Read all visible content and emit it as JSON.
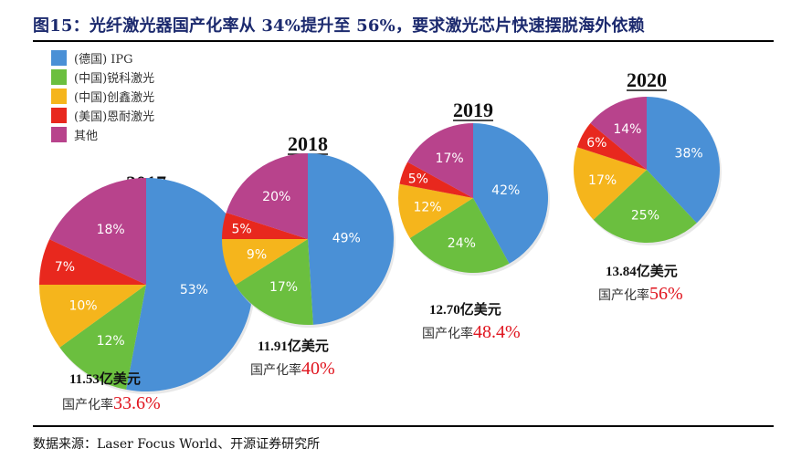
{
  "title": "图15：光纤激光器国产化率从 34%提升至 56%，要求激光芯片快速摆脱海外依赖",
  "source": "数据来源：Laser Focus World、开源证券研究所",
  "legend": [
    {
      "label": "(德国) IPG",
      "color": "#4a90d6"
    },
    {
      "label": "(中国)锐科激光",
      "color": "#6bbf3f"
    },
    {
      "label": "(中国)创鑫激光",
      "color": "#f5b51c"
    },
    {
      "label": "(美国)恩耐激光",
      "color": "#e8281e"
    },
    {
      "label": "其他",
      "color": "#b8438c"
    }
  ],
  "chart_data": [
    {
      "type": "pie",
      "title": "2017",
      "categories": [
        "(德国) IPG",
        "(中国)锐科激光",
        "(中国)创鑫激光",
        "(美国)恩耐激光",
        "其他"
      ],
      "values": [
        53,
        12,
        10,
        7,
        18
      ],
      "value_labels": [
        "53%",
        "12%",
        "10%",
        "7%",
        "18%"
      ],
      "unit": "%",
      "market_size": "11.53亿美元",
      "localization_label": "国产化率",
      "localization_rate": "33.6%"
    },
    {
      "type": "pie",
      "title": "2018",
      "categories": [
        "(德国) IPG",
        "(中国)锐科激光",
        "(中国)创鑫激光",
        "(美国)恩耐激光",
        "其他"
      ],
      "values": [
        49,
        17,
        9,
        5,
        20
      ],
      "value_labels": [
        "49%",
        "17%",
        "9%",
        "5%",
        "20%"
      ],
      "unit": "%",
      "market_size": "11.91亿美元",
      "localization_label": "国产化率",
      "localization_rate": "40%"
    },
    {
      "type": "pie",
      "title": "2019",
      "categories": [
        "(德国) IPG",
        "(中国)锐科激光",
        "(中国)创鑫激光",
        "(美国)恩耐激光",
        "其他"
      ],
      "values": [
        42,
        24,
        12,
        5,
        17
      ],
      "value_labels": [
        "42%",
        "24%",
        "12%",
        "5%",
        "17%"
      ],
      "unit": "%",
      "market_size": "12.70亿美元",
      "localization_label": "国产化率",
      "localization_rate": "48.4%"
    },
    {
      "type": "pie",
      "title": "2020",
      "categories": [
        "(德国) IPG",
        "(中国)锐科激光",
        "(中国)创鑫激光",
        "(美国)恩耐激光",
        "其他"
      ],
      "values": [
        38,
        25,
        17,
        6,
        14
      ],
      "value_labels": [
        "38%",
        "25%",
        "17%",
        "6%",
        "14%"
      ],
      "unit": "%",
      "market_size": "13.84亿美元",
      "localization_label": "国产化率",
      "localization_rate": "56%"
    }
  ]
}
